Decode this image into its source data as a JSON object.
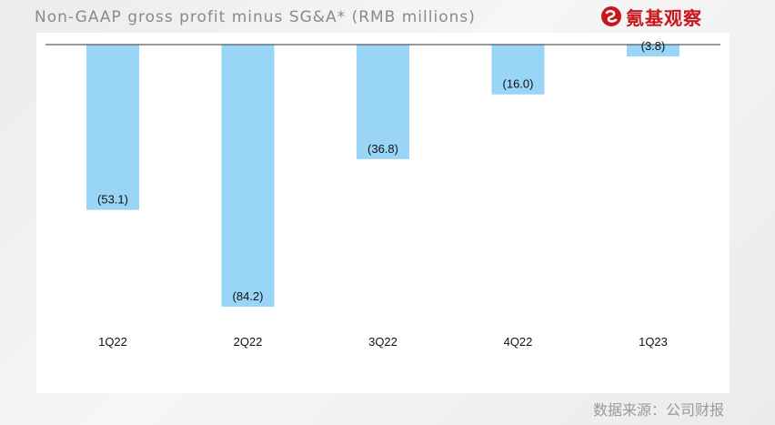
{
  "header": {
    "title": "Non-GAAP gross profit minus SG&A* (RMB millions)",
    "logo_text": "氪基观察"
  },
  "footer": {
    "source": "数据来源：公司财报"
  },
  "colors": {
    "bar": "#99d5f6",
    "axis": "#333333",
    "logo": "#c8161d"
  },
  "chart_data": {
    "type": "bar",
    "title": "Non-GAAP gross profit minus SG&A* (RMB millions)",
    "categories": [
      "1Q22",
      "2Q22",
      "3Q22",
      "4Q22",
      "1Q23"
    ],
    "values": [
      -53.1,
      -84.2,
      -36.8,
      -16.0,
      -3.8
    ],
    "labels": [
      "(53.1)",
      "(84.2)",
      "(36.8)",
      "(16.0)",
      "(3.8)"
    ],
    "ylim": [
      -90,
      0
    ],
    "xlabel": "",
    "ylabel": "",
    "grid": false
  }
}
